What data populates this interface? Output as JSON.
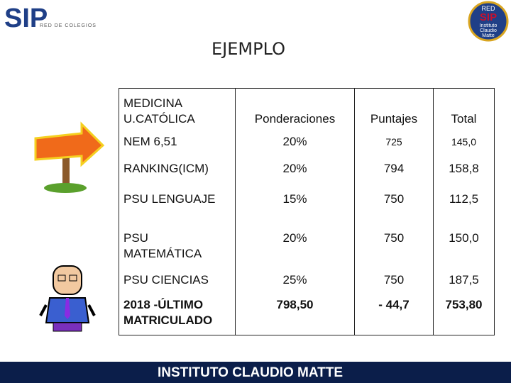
{
  "logo": {
    "name": "SIP",
    "subtitle": "RED DE COLEGIOS"
  },
  "badge": {
    "top": "RED",
    "name": "SIP",
    "school": "Instituto\nClaudio\nMatte"
  },
  "title": "EJEMPLO",
  "table": {
    "header": [
      "MEDICINA\nU.CATÓLICA",
      "Ponderaciones",
      "Puntajes",
      "Total"
    ],
    "rows": [
      [
        "NEM   6,51",
        "20%",
        "725",
        "145,0"
      ],
      [
        "RANKING(ICM)",
        "20%",
        "794",
        "158,8"
      ],
      [
        "PSU LENGUAJE",
        "15%",
        "750",
        "112,5"
      ],
      [
        "PSU\nMATEMÁTICA",
        "20%",
        "750",
        "150,0"
      ],
      [
        "PSU CIENCIAS",
        "25%",
        "750",
        "187,5"
      ],
      [
        "2018 -ÚLTIMO\nMATRICULADO",
        "798,50",
        "- 44,7",
        "753,80"
      ]
    ]
  },
  "footer": "INSTITUTO CLAUDIO MATTE"
}
